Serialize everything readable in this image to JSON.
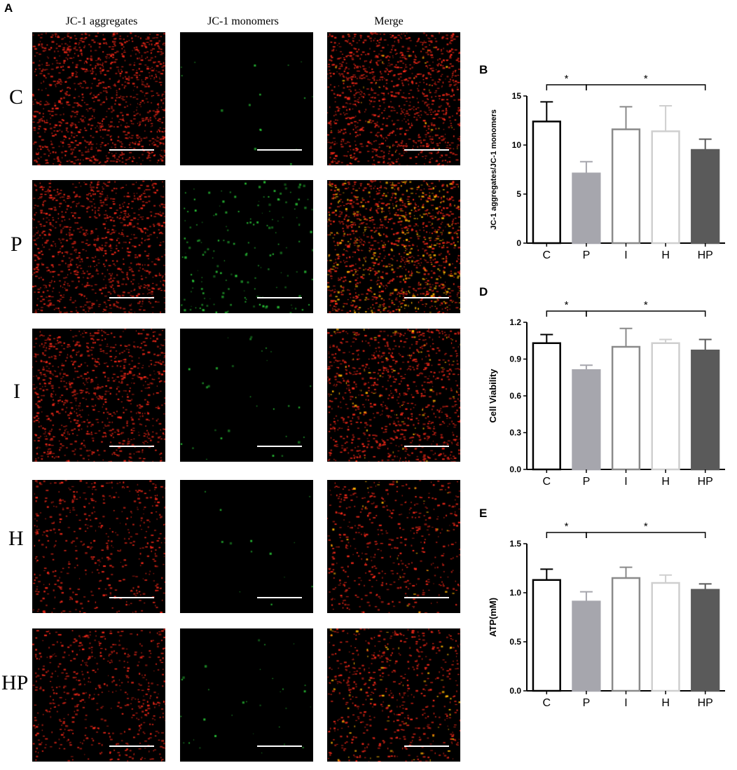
{
  "panel_labels": {
    "A": "A",
    "B": "B",
    "D": "D",
    "E": "E"
  },
  "micrographs": {
    "columns": [
      "JC-1 aggregates",
      "JC-1 monomers",
      "Merge"
    ],
    "rows": [
      {
        "label": "C",
        "red": 0.8,
        "green": 0.06,
        "merge_yellow": 0.05
      },
      {
        "label": "P",
        "red": 0.7,
        "green": 0.65,
        "merge_yellow": 0.55
      },
      {
        "label": "I",
        "red": 0.65,
        "green": 0.12,
        "merge_yellow": 0.1
      },
      {
        "label": "H",
        "red": 0.35,
        "green": 0.05,
        "merge_yellow": 0.05
      },
      {
        "label": "HP",
        "red": 0.4,
        "green": 0.12,
        "merge_yellow": 0.1
      }
    ],
    "colors": {
      "red": "#ff2a1a",
      "green": "#2bd03a",
      "yellow": "#ffb400"
    }
  },
  "chart_data": [
    {
      "id": "B",
      "type": "bar",
      "categories": [
        "C",
        "P",
        "I",
        "H",
        "HP"
      ],
      "values": [
        12.4,
        7.1,
        11.6,
        11.4,
        9.5
      ],
      "errors": [
        2.0,
        1.2,
        2.3,
        2.6,
        1.1
      ],
      "ylabel": "JC-1 aggregates/JC-1 monomers",
      "ylim": [
        0,
        15
      ],
      "yticks": [
        "0",
        "5",
        "10",
        "15"
      ],
      "significance": [
        {
          "from": 0,
          "to": 1,
          "label": "*"
        },
        {
          "from": 1,
          "to": 4,
          "label": "*"
        }
      ]
    },
    {
      "id": "D",
      "type": "bar",
      "categories": [
        "C",
        "P",
        "I",
        "H",
        "HP"
      ],
      "values": [
        1.03,
        0.81,
        1.0,
        1.03,
        0.97
      ],
      "errors": [
        0.07,
        0.04,
        0.15,
        0.03,
        0.09
      ],
      "ylabel": "Cell Viability",
      "ylim": [
        0,
        1.2
      ],
      "yticks": [
        "0.0",
        "0.3",
        "0.6",
        "0.9",
        "1.2"
      ],
      "significance": [
        {
          "from": 0,
          "to": 1,
          "label": "*"
        },
        {
          "from": 1,
          "to": 4,
          "label": "*"
        }
      ]
    },
    {
      "id": "E",
      "type": "bar",
      "categories": [
        "C",
        "P",
        "I",
        "H",
        "HP"
      ],
      "values": [
        1.13,
        0.91,
        1.15,
        1.1,
        1.03
      ],
      "errors": [
        0.11,
        0.1,
        0.11,
        0.08,
        0.06
      ],
      "ylabel": "ATP(mM)",
      "ylim": [
        0,
        1.5
      ],
      "yticks": [
        "0.0",
        "0.5",
        "1.0",
        "1.5"
      ],
      "significance": [
        {
          "from": 0,
          "to": 1,
          "label": "*"
        },
        {
          "from": 1,
          "to": 4,
          "label": "*"
        }
      ]
    }
  ],
  "bar_styles": [
    {
      "fill": "#ffffff",
      "stroke": "#000000"
    },
    {
      "fill": "#a6a6ad",
      "stroke": "#a6a6ad"
    },
    {
      "fill": "#ffffff",
      "stroke": "#8a8a8a"
    },
    {
      "fill": "#ffffff",
      "stroke": "#cfcfcf"
    },
    {
      "fill": "#5a5a5a",
      "stroke": "#5a5a5a"
    }
  ]
}
